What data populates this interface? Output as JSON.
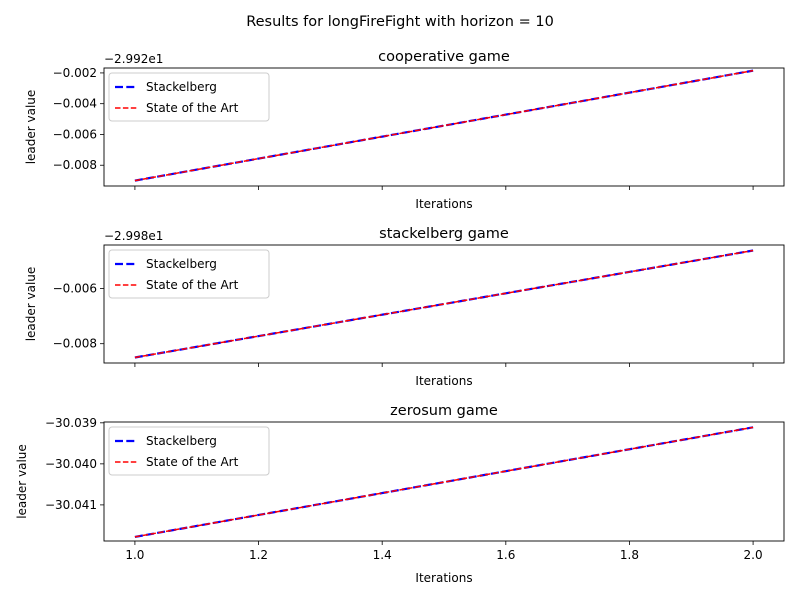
{
  "suptitle": "Results for longFireFight with horizon = 10",
  "chart_data": [
    {
      "type": "line",
      "title": "cooperative game",
      "xlabel": "Iterations",
      "ylabel": "leader value",
      "offset_text": "−2.992e1",
      "x": [
        1.0,
        2.0
      ],
      "xlim": [
        0.95,
        2.05
      ],
      "xticks": [
        1.0,
        1.2,
        1.4,
        1.6,
        1.8,
        2.0
      ],
      "xtick_labels_visible": false,
      "ylim": [
        -0.00935,
        -0.00168
      ],
      "yticks": [
        -0.008,
        -0.006,
        -0.004,
        -0.002
      ],
      "ytick_labels": [
        "−0.008",
        "−0.006",
        "−0.004",
        "−0.002"
      ],
      "series": [
        {
          "name": "Stackelberg",
          "color": "#0000ff",
          "style": "dashed-bold",
          "y": [
            -0.009,
            -0.00185
          ]
        },
        {
          "name": "State of the Art",
          "color": "#ff0000",
          "style": "dashed",
          "y": [
            -0.009,
            -0.00185
          ]
        }
      ],
      "legend_loc": "upper left",
      "grid": false
    },
    {
      "type": "line",
      "title": "stackelberg game",
      "xlabel": "Iterations",
      "ylabel": "leader value",
      "offset_text": "−2.998e1",
      "x": [
        1.0,
        2.0
      ],
      "xlim": [
        0.95,
        2.05
      ],
      "xticks": [
        1.0,
        1.2,
        1.4,
        1.6,
        1.8,
        2.0
      ],
      "xtick_labels_visible": false,
      "ylim": [
        -0.0087,
        -0.00442
      ],
      "yticks": [
        -0.008,
        -0.006
      ],
      "ytick_labels": [
        "−0.008",
        "−0.006"
      ],
      "series": [
        {
          "name": "Stackelberg",
          "color": "#0000ff",
          "style": "dashed-bold",
          "y": [
            -0.0085,
            -0.00462
          ]
        },
        {
          "name": "State of the Art",
          "color": "#ff0000",
          "style": "dashed",
          "y": [
            -0.0085,
            -0.00462
          ]
        }
      ],
      "legend_loc": "upper left",
      "grid": false
    },
    {
      "type": "line",
      "title": "zerosum game",
      "xlabel": "Iterations",
      "ylabel": "leader value",
      "offset_text": "",
      "x": [
        1.0,
        2.0
      ],
      "xlim": [
        0.95,
        2.05
      ],
      "xticks": [
        1.0,
        1.2,
        1.4,
        1.6,
        1.8,
        2.0
      ],
      "xtick_labels": [
        "1.0",
        "1.2",
        "1.4",
        "1.6",
        "1.8",
        "2.0"
      ],
      "xtick_labels_visible": true,
      "ylim": [
        -30.04188,
        -30.03898
      ],
      "yticks": [
        -30.041,
        -30.04,
        -30.039
      ],
      "ytick_labels": [
        "−30.041",
        "−30.040",
        "−30.039"
      ],
      "series": [
        {
          "name": "Stackelberg",
          "color": "#0000ff",
          "style": "dashed-bold",
          "y": [
            -30.04178,
            -30.03911
          ]
        },
        {
          "name": "State of the Art",
          "color": "#ff0000",
          "style": "dashed",
          "y": [
            -30.04178,
            -30.03911
          ]
        }
      ],
      "legend_loc": "upper left",
      "grid": false
    }
  ]
}
